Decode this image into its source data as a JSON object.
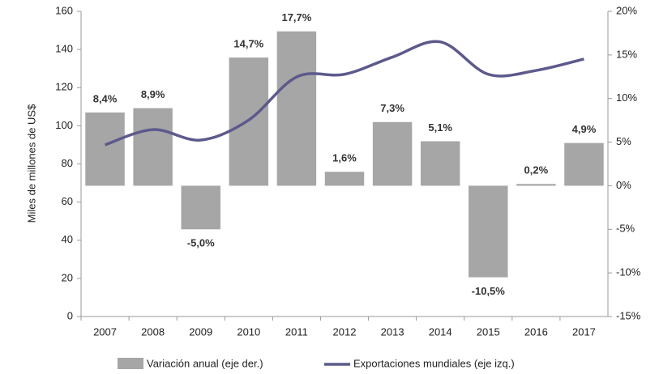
{
  "chart_data": {
    "type": "bar",
    "y_label": "Miles de millones de US$",
    "categories": [
      "2007",
      "2008",
      "2009",
      "2010",
      "2011",
      "2012",
      "2013",
      "2014",
      "2015",
      "2016",
      "2017"
    ],
    "series": [
      {
        "name": "Variación anual (eje der.)",
        "type": "bar",
        "axis": "y2",
        "color": "#a6a6a6",
        "values": [
          8.4,
          8.9,
          -5.0,
          14.7,
          17.7,
          1.6,
          7.3,
          5.1,
          -10.5,
          0.2,
          4.9
        ],
        "value_labels": [
          "8,4%",
          "8,9%",
          "-5,0%",
          "14,7%",
          "17,7%",
          "1,6%",
          "7,3%",
          "5,1%",
          "-10,5%",
          "0,2%",
          "4,9%"
        ]
      },
      {
        "name": "Exportaciones mundiales (eje izq.)",
        "type": "line",
        "axis": "y",
        "color": "#5c5a8c",
        "values": [
          90,
          98,
          92.5,
          103,
          125.6,
          127,
          136,
          144,
          127,
          129,
          135
        ]
      }
    ],
    "ylim": [
      0,
      160
    ],
    "yticks": [
      0,
      20,
      40,
      60,
      80,
      100,
      120,
      140,
      160
    ],
    "y2lim": [
      -15,
      20
    ],
    "y2ticks": [
      {
        "value": -15,
        "label": "-15%"
      },
      {
        "value": -10,
        "label": "-10%"
      },
      {
        "value": -5,
        "label": "-5%"
      },
      {
        "value": 0,
        "label": "0%"
      },
      {
        "value": 5,
        "label": "5%"
      },
      {
        "value": 10,
        "label": "10%"
      },
      {
        "value": 15,
        "label": "15%"
      },
      {
        "value": 20,
        "label": "20%"
      }
    ],
    "legend": "bottom"
  }
}
